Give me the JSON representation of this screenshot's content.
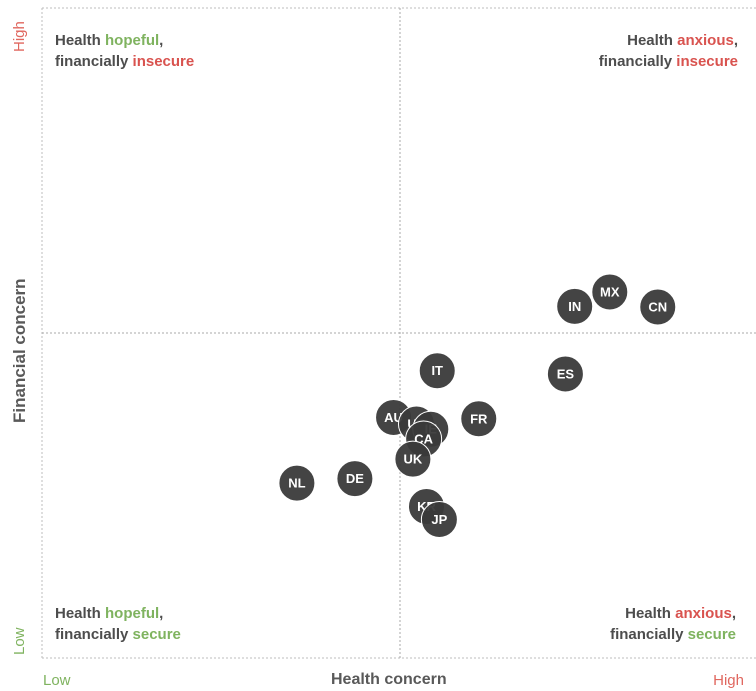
{
  "chart_data": {
    "type": "scatter",
    "xlabel": "Health concern",
    "ylabel": "Financial concern",
    "x_ticks": {
      "low": "Low",
      "high": "High"
    },
    "y_ticks": {
      "low": "Low",
      "high": "High"
    },
    "xlim": [
      0,
      100
    ],
    "ylim": [
      0,
      100
    ],
    "quadrants": {
      "top_left": {
        "line1_prefix": "Health ",
        "line1_key": "hopeful",
        "line1_suffix": ",",
        "line2_prefix": "financially ",
        "line2_key": "insecure"
      },
      "top_right": {
        "line1_prefix": "Health ",
        "line1_key": "anxious",
        "line1_suffix": ",",
        "line2_prefix": "financially ",
        "line2_key": "insecure"
      },
      "bottom_left": {
        "line1_prefix": "Health ",
        "line1_key": "hopeful",
        "line1_suffix": ",",
        "line2_prefix": "financially ",
        "line2_key": "secure"
      },
      "bottom_right": {
        "line1_prefix": "Health ",
        "line1_key": "anxious",
        "line1_suffix": ",",
        "line2_prefix": "financially ",
        "line2_key": "secure"
      }
    },
    "points": [
      {
        "label": "MX",
        "x": 79.3,
        "y": 56.3
      },
      {
        "label": "IN",
        "x": 74.4,
        "y": 54.1
      },
      {
        "label": "CN",
        "x": 86.0,
        "y": 54.0
      },
      {
        "label": "ES",
        "x": 73.1,
        "y": 43.7
      },
      {
        "label": "IT",
        "x": 55.2,
        "y": 44.2
      },
      {
        "label": "FR",
        "x": 61.0,
        "y": 36.8
      },
      {
        "label": "AU",
        "x": 49.1,
        "y": 37.0
      },
      {
        "label": "US",
        "x": 52.3,
        "y": 36.0
      },
      {
        "label": "IE",
        "x": 54.3,
        "y": 35.2
      },
      {
        "label": "CA",
        "x": 53.3,
        "y": 33.7
      },
      {
        "label": "UK",
        "x": 51.8,
        "y": 30.6
      },
      {
        "label": "DE",
        "x": 43.7,
        "y": 27.6
      },
      {
        "label": "NL",
        "x": 35.6,
        "y": 26.9
      },
      {
        "label": "KR",
        "x": 53.7,
        "y": 23.3
      },
      {
        "label": "JP",
        "x": 55.5,
        "y": 21.3
      }
    ],
    "colors": {
      "point": "#3a3a3a",
      "point_text": "#ffffff",
      "hopeful": "#7fb35f",
      "anxious": "#d9534f",
      "secure": "#7fb35f",
      "insecure": "#d9534f"
    }
  }
}
